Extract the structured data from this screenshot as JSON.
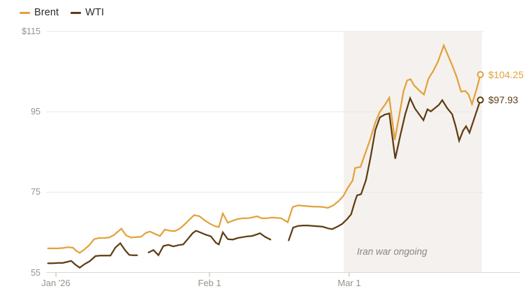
{
  "chart_data": {
    "type": "line",
    "title": "",
    "x_unit": "days from chart start (early Jan 2026)",
    "x_range": [
      0,
      88
    ],
    "y_range": [
      55,
      115
    ],
    "grid": true,
    "legend_position": "top-left",
    "x_ticks": [
      {
        "label": "Jan '26",
        "day": 1.7
      },
      {
        "label": "Feb 1",
        "day": 32.7
      },
      {
        "label": "Mar 1",
        "day": 60.9
      }
    ],
    "y_ticks": [
      {
        "label": "$115",
        "value": 115
      },
      {
        "label": "95",
        "value": 95
      },
      {
        "label": "75",
        "value": 75
      },
      {
        "label": "55",
        "value": 55
      }
    ],
    "shaded_region": {
      "label": "Iran war ongoing",
      "day_start": 59.8,
      "day_end": 87.7,
      "color": "#f5f1ee"
    },
    "series": [
      {
        "name": "Brent",
        "color": "#E2A23A",
        "end_label": "$104.25",
        "end_value": 104.25,
        "segments": [
          [
            [
              0.1,
              61.0
            ],
            [
              1.1,
              61.0
            ],
            [
              2.1,
              61.0
            ],
            [
              3.1,
              61.1
            ],
            [
              4.1,
              61.3
            ],
            [
              5.1,
              61.2
            ],
            [
              5.9,
              60.3
            ],
            [
              6.5,
              59.9
            ],
            [
              7.5,
              60.8
            ],
            [
              8.5,
              61.9
            ],
            [
              9.4,
              63.3
            ],
            [
              10.4,
              63.6
            ],
            [
              11.4,
              63.6
            ],
            [
              12.4,
              63.7
            ],
            [
              13.4,
              64.3
            ],
            [
              14.9,
              65.9
            ],
            [
              15.9,
              64.2
            ],
            [
              16.9,
              63.7
            ],
            [
              17.9,
              63.8
            ],
            [
              18.9,
              63.9
            ],
            [
              19.9,
              64.9
            ],
            [
              20.7,
              65.2
            ],
            [
              21.7,
              64.6
            ],
            [
              22.7,
              64.1
            ],
            [
              23.7,
              65.7
            ],
            [
              24.7,
              65.4
            ],
            [
              25.7,
              65.3
            ],
            [
              26.7,
              65.9
            ],
            [
              27.6,
              66.9
            ],
            [
              28.6,
              68.1
            ],
            [
              29.6,
              69.3
            ],
            [
              30.7,
              69.0
            ],
            [
              31.7,
              68.0
            ],
            [
              32.7,
              67.2
            ],
            [
              33.7,
              66.6
            ],
            [
              34.6,
              66.3
            ],
            [
              35.4,
              69.7
            ],
            [
              36.4,
              67.4
            ],
            [
              37.4,
              67.9
            ],
            [
              38.4,
              68.3
            ],
            [
              39.4,
              68.5
            ],
            [
              40.3,
              68.5
            ],
            [
              41.3,
              68.7
            ],
            [
              42.3,
              69.0
            ],
            [
              43.3,
              68.5
            ],
            [
              44.3,
              68.5
            ],
            [
              45.3,
              68.7
            ],
            [
              46.3,
              68.6
            ],
            [
              47.2,
              68.5
            ],
            [
              48.5,
              67.5
            ],
            [
              49.5,
              71.3
            ],
            [
              50.6,
              71.7
            ],
            [
              51.6,
              71.6
            ],
            [
              52.6,
              71.5
            ],
            [
              53.6,
              71.4
            ],
            [
              54.6,
              71.4
            ],
            [
              55.6,
              71.3
            ],
            [
              56.6,
              71.1
            ],
            [
              57.7,
              71.7
            ],
            [
              58.7,
              72.7
            ],
            [
              59.7,
              74.0
            ],
            [
              60.6,
              76.0
            ],
            [
              61.6,
              77.9
            ],
            [
              62.1,
              81.0
            ],
            [
              63.2,
              81.3
            ],
            [
              64.2,
              84.8
            ],
            [
              65.2,
              88.3
            ],
            [
              66.2,
              92.4
            ],
            [
              67.1,
              95.0
            ],
            [
              68.1,
              96.7
            ],
            [
              69.0,
              98.5
            ],
            [
              70.1,
              88.0
            ],
            [
              70.9,
              93.3
            ],
            [
              71.9,
              100.2
            ],
            [
              72.6,
              102.8
            ],
            [
              73.3,
              103.1
            ],
            [
              74.0,
              101.6
            ],
            [
              75.2,
              100.1
            ],
            [
              76.0,
              99.3
            ],
            [
              76.9,
              103.2
            ],
            [
              77.9,
              105.2
            ],
            [
              78.8,
              107.4
            ],
            [
              80.0,
              111.5
            ],
            [
              80.8,
              109.2
            ],
            [
              81.7,
              106.6
            ],
            [
              82.6,
              103.7
            ],
            [
              83.5,
              100.0
            ],
            [
              84.3,
              100.2
            ],
            [
              85.0,
              99.3
            ],
            [
              85.7,
              96.9
            ],
            [
              86.6,
              100.5
            ],
            [
              87.4,
              104.25
            ]
          ]
        ]
      },
      {
        "name": "WTI",
        "color": "#5F3C12",
        "end_label": "$97.93",
        "end_value": 97.93,
        "segments": [
          [
            [
              0.1,
              57.3
            ],
            [
              1.1,
              57.3
            ],
            [
              2.1,
              57.4
            ],
            [
              3.1,
              57.4
            ],
            [
              4.1,
              57.7
            ],
            [
              4.8,
              57.9
            ],
            [
              5.6,
              57.0
            ],
            [
              6.5,
              56.2
            ],
            [
              7.5,
              57.1
            ],
            [
              8.5,
              57.8
            ],
            [
              9.7,
              59.1
            ],
            [
              10.7,
              59.2
            ],
            [
              11.7,
              59.2
            ],
            [
              12.7,
              59.2
            ],
            [
              13.7,
              61.2
            ],
            [
              14.7,
              62.3
            ],
            [
              15.7,
              60.5
            ],
            [
              16.5,
              59.4
            ],
            [
              17.2,
              59.3
            ],
            [
              18.1,
              59.3
            ]
          ],
          [
            [
              20.4,
              60.0
            ],
            [
              21.4,
              60.6
            ],
            [
              22.4,
              59.3
            ],
            [
              23.4,
              61.6
            ],
            [
              24.4,
              61.9
            ],
            [
              25.4,
              61.5
            ],
            [
              26.4,
              61.8
            ],
            [
              27.4,
              62.0
            ],
            [
              28.3,
              63.3
            ],
            [
              29.3,
              64.8
            ],
            [
              30.0,
              65.4
            ],
            [
              31.0,
              64.9
            ],
            [
              32.0,
              64.4
            ],
            [
              33.0,
              64.0
            ],
            [
              34.0,
              62.4
            ],
            [
              34.6,
              62.0
            ],
            [
              35.4,
              65.0
            ],
            [
              36.4,
              63.3
            ],
            [
              37.4,
              63.2
            ],
            [
              38.4,
              63.6
            ],
            [
              39.4,
              63.8
            ],
            [
              40.3,
              64.0
            ],
            [
              41.3,
              64.1
            ],
            [
              42.3,
              64.5
            ],
            [
              42.9,
              64.8
            ],
            [
              43.9,
              63.9
            ],
            [
              45.0,
              63.2
            ]
          ],
          [
            [
              48.7,
              63.0
            ],
            [
              49.6,
              66.2
            ],
            [
              50.6,
              66.6
            ],
            [
              51.6,
              66.7
            ],
            [
              52.6,
              66.7
            ],
            [
              53.6,
              66.6
            ],
            [
              54.6,
              66.5
            ],
            [
              55.6,
              66.4
            ],
            [
              56.6,
              66.0
            ],
            [
              57.5,
              65.8
            ],
            [
              58.5,
              66.4
            ],
            [
              59.5,
              67.1
            ],
            [
              60.5,
              68.3
            ],
            [
              61.3,
              69.5
            ],
            [
              62.1,
              72.8
            ],
            [
              62.5,
              74.2
            ],
            [
              63.3,
              74.5
            ],
            [
              64.3,
              78.0
            ],
            [
              65.2,
              83.5
            ],
            [
              66.2,
              90.5
            ],
            [
              67.1,
              93.6
            ],
            [
              68.1,
              94.3
            ],
            [
              69.0,
              94.6
            ],
            [
              70.2,
              83.3
            ],
            [
              71.2,
              89.0
            ],
            [
              72.2,
              94.3
            ],
            [
              73.2,
              98.4
            ],
            [
              74.2,
              95.8
            ],
            [
              75.9,
              92.9
            ],
            [
              76.7,
              95.6
            ],
            [
              77.4,
              95.1
            ],
            [
              78.3,
              96.0
            ],
            [
              79.0,
              96.7
            ],
            [
              79.7,
              97.9
            ],
            [
              80.7,
              95.9
            ],
            [
              81.7,
              94.4
            ],
            [
              82.4,
              91.4
            ],
            [
              83.1,
              87.8
            ],
            [
              83.9,
              90.3
            ],
            [
              84.5,
              91.4
            ],
            [
              85.2,
              89.8
            ],
            [
              86.2,
              93.5
            ],
            [
              87.4,
              97.93
            ]
          ]
        ]
      }
    ]
  }
}
